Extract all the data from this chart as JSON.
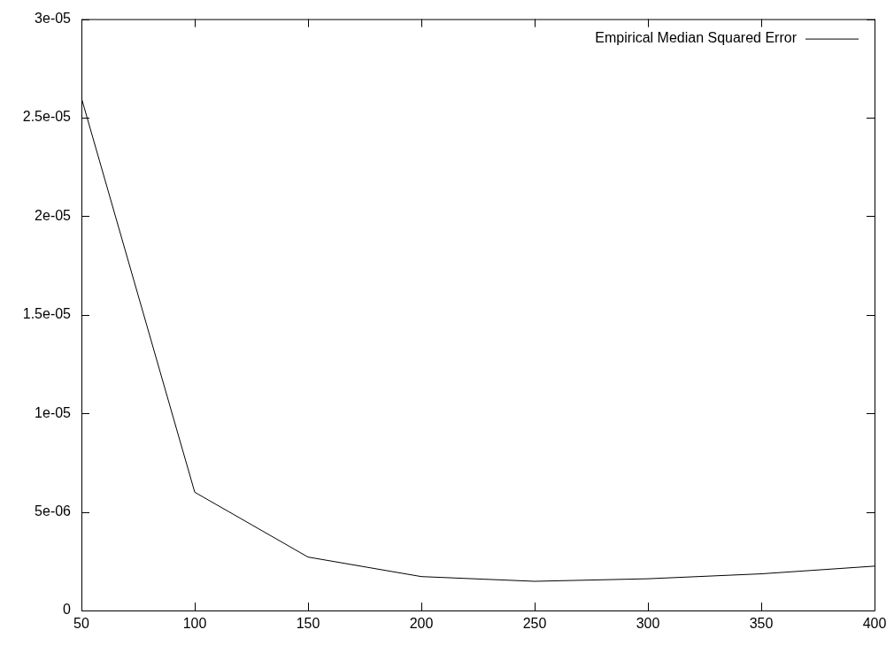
{
  "chart_data": {
    "type": "line",
    "x": [
      50,
      100,
      150,
      200,
      250,
      300,
      350,
      400
    ],
    "series": [
      {
        "name": "Empirical Median Squared Error",
        "color": "#000000",
        "values": [
          2.6e-05,
          6e-06,
          2.71e-06,
          1.72e-06,
          1.48e-06,
          1.61e-06,
          1.86e-06,
          2.25e-06
        ]
      }
    ],
    "xlim": [
      50,
      400
    ],
    "xticks": [
      50,
      100,
      150,
      200,
      250,
      300,
      350,
      400
    ],
    "ylim": [
      0,
      3e-05
    ],
    "yticks": [
      0,
      {
        "value": 5e-06,
        "label": "5e-06"
      },
      {
        "value": 1e-05,
        "label": "1e-05"
      },
      {
        "value": 1.5e-05,
        "label": "1.5e-05"
      },
      {
        "value": 2e-05,
        "label": "2e-05"
      },
      {
        "value": 2.5e-05,
        "label": "2.5e-05"
      },
      {
        "value": 3e-05,
        "label": "3e-05"
      }
    ],
    "legend": "top right",
    "marker": "none",
    "line_style": "solid"
  }
}
